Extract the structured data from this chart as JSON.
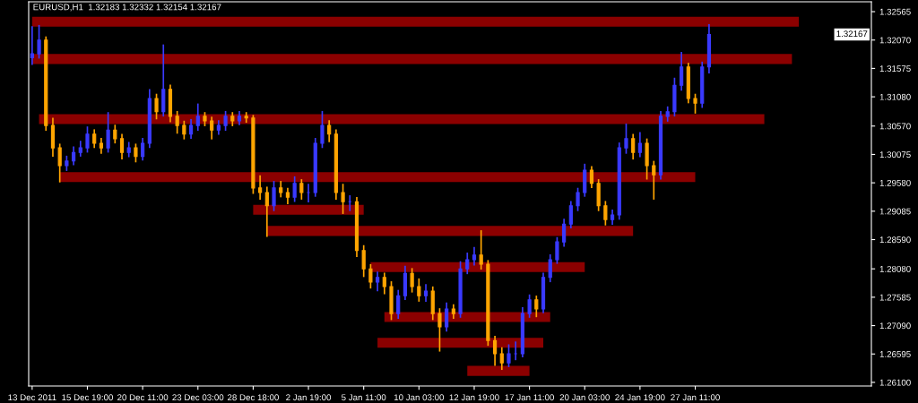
{
  "chart_data": {
    "type": "candlestick",
    "title": "EURUSD,H1  1.32183 1.32332 1.32154 1.32167",
    "categories": [
      "13 Dec 2011",
      null,
      null,
      null,
      null,
      null,
      null,
      null,
      "15 Dec 19:00",
      null,
      null,
      null,
      null,
      null,
      null,
      null,
      "20 Dec 11:00",
      null,
      null,
      null,
      null,
      null,
      null,
      null,
      "23 Dec 03:00",
      null,
      null,
      null,
      null,
      null,
      null,
      null,
      "28 Dec 18:00",
      null,
      null,
      null,
      null,
      null,
      null,
      null,
      "2 Jan 19:00",
      null,
      null,
      null,
      null,
      null,
      null,
      null,
      "5 Jan 11:00",
      null,
      null,
      null,
      null,
      null,
      null,
      null,
      "10 Jan 03:00",
      null,
      null,
      null,
      null,
      null,
      null,
      null,
      "12 Jan 19:00",
      null,
      null,
      null,
      null,
      null,
      null,
      null,
      "17 Jan 11:00",
      null,
      null,
      null,
      null,
      null,
      null,
      null,
      "20 Jan 03:00",
      null,
      null,
      null,
      null,
      null,
      null,
      null,
      "24 Jan 19:00",
      null,
      null,
      null,
      null,
      null,
      null,
      null,
      "27 Jan 11:00",
      null,
      null,
      null,
      null,
      null,
      null,
      null,
      null,
      null,
      null,
      null,
      null,
      null,
      null,
      null,
      null,
      null,
      null,
      null,
      null,
      null,
      null,
      null,
      null,
      null
    ],
    "ohlc": [
      [
        1.3176,
        1.323,
        1.3165,
        1.3183
      ],
      [
        1.3183,
        1.3232,
        1.3176,
        1.3207
      ],
      [
        1.3207,
        1.3212,
        1.305,
        1.3058
      ],
      [
        1.3058,
        1.307,
        1.3005,
        1.3019
      ],
      [
        1.3019,
        1.3025,
        1.296,
        1.2988
      ],
      [
        1.2988,
        1.3004,
        1.298,
        1.2996
      ],
      [
        1.2996,
        1.302,
        1.299,
        1.3011
      ],
      [
        1.3011,
        1.303,
        1.3005,
        1.3019
      ],
      [
        1.3019,
        1.3055,
        1.3012,
        1.3043
      ],
      [
        1.3043,
        1.305,
        1.302,
        1.3027
      ],
      [
        1.3027,
        1.3035,
        1.301,
        1.3019
      ],
      [
        1.3019,
        1.308,
        1.3012,
        1.305
      ],
      [
        1.305,
        1.3058,
        1.3028,
        1.3035
      ],
      [
        1.3035,
        1.3042,
        1.3,
        1.3011
      ],
      [
        1.3011,
        1.3028,
        1.3004,
        1.3019
      ],
      [
        1.3019,
        1.3025,
        1.2995,
        1.3004
      ],
      [
        1.3004,
        1.3035,
        1.2998,
        1.3027
      ],
      [
        1.3027,
        1.312,
        1.302,
        1.3105
      ],
      [
        1.3105,
        1.3112,
        1.307,
        1.3082
      ],
      [
        1.3082,
        1.3198,
        1.3075,
        1.3121
      ],
      [
        1.3121,
        1.3128,
        1.3065,
        1.3074
      ],
      [
        1.3074,
        1.3082,
        1.3045,
        1.3058
      ],
      [
        1.3058,
        1.3065,
        1.3035,
        1.3043
      ],
      [
        1.3043,
        1.3068,
        1.3036,
        1.3058
      ],
      [
        1.3058,
        1.3095,
        1.305,
        1.3074
      ],
      [
        1.3074,
        1.308,
        1.3058,
        1.3066
      ],
      [
        1.3066,
        1.3072,
        1.3035,
        1.305
      ],
      [
        1.305,
        1.3066,
        1.3043,
        1.3058
      ],
      [
        1.3058,
        1.3082,
        1.305,
        1.3074
      ],
      [
        1.3074,
        1.308,
        1.3058,
        1.3066
      ],
      [
        1.3066,
        1.3082,
        1.306,
        1.3074
      ],
      [
        1.3074,
        1.308,
        1.3064,
        1.3071
      ],
      [
        1.3071,
        1.3075,
        1.294,
        1.2949
      ],
      [
        1.2949,
        1.297,
        1.293,
        1.2941
      ],
      [
        1.2941,
        1.295,
        1.2865,
        1.2918
      ],
      [
        1.2918,
        1.296,
        1.291,
        1.2949
      ],
      [
        1.2949,
        1.296,
        1.2934,
        1.2941
      ],
      [
        1.2941,
        1.2948,
        1.2922,
        1.2933
      ],
      [
        1.2933,
        1.2968,
        1.2926,
        1.2957
      ],
      [
        1.2957,
        1.2963,
        1.293,
        1.2941
      ],
      [
        1.2941,
        1.2955,
        1.2925,
        1.2941
      ],
      [
        1.2941,
        1.3035,
        1.2935,
        1.3027
      ],
      [
        1.3027,
        1.3082,
        1.302,
        1.3058
      ],
      [
        1.3058,
        1.3066,
        1.303,
        1.3043
      ],
      [
        1.3043,
        1.305,
        1.293,
        1.2941
      ],
      [
        1.2941,
        1.2955,
        1.2905,
        1.2925
      ],
      [
        1.2925,
        1.2935,
        1.291,
        1.2925
      ],
      [
        1.2925,
        1.2932,
        1.283,
        1.284
      ],
      [
        1.284,
        1.2848,
        1.2795,
        1.2808
      ],
      [
        1.2808,
        1.2815,
        1.2775,
        1.2785
      ],
      [
        1.2785,
        1.2802,
        1.277,
        1.2793
      ],
      [
        1.2793,
        1.28,
        1.2765,
        1.2777
      ],
      [
        1.2777,
        1.2785,
        1.272,
        1.273
      ],
      [
        1.273,
        1.277,
        1.2722,
        1.2761
      ],
      [
        1.2761,
        1.2812,
        1.2755,
        1.28
      ],
      [
        1.28,
        1.2808,
        1.2768,
        1.2777
      ],
      [
        1.2777,
        1.279,
        1.2752,
        1.2761
      ],
      [
        1.2761,
        1.278,
        1.2752,
        1.2769
      ],
      [
        1.2769,
        1.2776,
        1.272,
        1.273
      ],
      [
        1.273,
        1.2738,
        1.2665,
        1.2707
      ],
      [
        1.2707,
        1.2748,
        1.27,
        1.2738
      ],
      [
        1.2738,
        1.2745,
        1.2722,
        1.273
      ],
      [
        1.273,
        1.282,
        1.2724,
        1.2808
      ],
      [
        1.2808,
        1.2835,
        1.28,
        1.2824
      ],
      [
        1.2824,
        1.2845,
        1.2815,
        1.2832
      ],
      [
        1.2832,
        1.2874,
        1.2808,
        1.2816
      ],
      [
        1.2816,
        1.2822,
        1.2675,
        1.2683
      ],
      [
        1.2683,
        1.269,
        1.264,
        1.266
      ],
      [
        1.266,
        1.267,
        1.2633,
        1.2644
      ],
      [
        1.2644,
        1.2675,
        1.2638,
        1.266
      ],
      [
        1.266,
        1.268,
        1.265,
        1.266
      ],
      [
        1.266,
        1.274,
        1.2655,
        1.273
      ],
      [
        1.273,
        1.2762,
        1.2724,
        1.2754
      ],
      [
        1.2754,
        1.276,
        1.2725,
        1.2738
      ],
      [
        1.2738,
        1.28,
        1.2732,
        1.2793
      ],
      [
        1.2793,
        1.2832,
        1.2786,
        1.2824
      ],
      [
        1.2824,
        1.2862,
        1.2818,
        1.2855
      ],
      [
        1.2855,
        1.2894,
        1.2848,
        1.2886
      ],
      [
        1.2886,
        1.2925,
        1.288,
        1.2918
      ],
      [
        1.2918,
        1.2948,
        1.291,
        1.2941
      ],
      [
        1.2941,
        1.299,
        1.2935,
        1.298
      ],
      [
        1.298,
        1.2986,
        1.295,
        1.2957
      ],
      [
        1.2957,
        1.2963,
        1.291,
        1.2918
      ],
      [
        1.2918,
        1.2925,
        1.2885,
        1.2894
      ],
      [
        1.2894,
        1.291,
        1.2886,
        1.2902
      ],
      [
        1.2902,
        1.3027,
        1.2895,
        1.3019
      ],
      [
        1.3019,
        1.306,
        1.301,
        1.3035
      ],
      [
        1.3035,
        1.3042,
        1.3,
        1.3011
      ],
      [
        1.3011,
        1.3045,
        1.3004,
        1.3027
      ],
      [
        1.3027,
        1.3034,
        1.2965,
        1.2988
      ],
      [
        1.2988,
        1.2995,
        1.293,
        1.2972
      ],
      [
        1.2972,
        1.3082,
        1.2965,
        1.3074
      ],
      [
        1.3074,
        1.309,
        1.3066,
        1.3082
      ],
      [
        1.3082,
        1.314,
        1.3075,
        1.3128
      ],
      [
        1.3128,
        1.3185,
        1.312,
        1.316
      ],
      [
        1.316,
        1.3166,
        1.3098,
        1.3105
      ],
      [
        1.3105,
        1.3112,
        1.308,
        1.3097
      ],
      [
        1.3097,
        1.3168,
        1.309,
        1.316
      ],
      [
        1.316,
        1.32332,
        1.315,
        1.32167
      ],
      null,
      null,
      null,
      null,
      null,
      null,
      null,
      null,
      null,
      null,
      null,
      null,
      null,
      null,
      null,
      null,
      null,
      null,
      null,
      null,
      null,
      null,
      null
    ],
    "colors": [
      "#3a3aff",
      "#3a3aff",
      "#ffa500",
      "#ffa500",
      "#ffa500",
      "#3a3aff",
      "#3a3aff",
      "#3a3aff",
      "#3a3aff",
      "#ffa500",
      "#ffa500",
      "#3a3aff",
      "#ffa500",
      "#ffa500",
      "#3a3aff",
      "#ffa500",
      "#3a3aff",
      "#3a3aff",
      "#ffa500",
      "#3a3aff",
      "#ffa500",
      "#ffa500",
      "#ffa500",
      "#3a3aff",
      "#3a3aff",
      "#ffa500",
      "#ffa500",
      "#3a3aff",
      "#3a3aff",
      "#ffa500",
      "#3a3aff",
      "#ffa500",
      "#ffa500",
      "#ffa500",
      "#ffa500",
      "#3a3aff",
      "#ffa500",
      "#ffa500",
      "#3a3aff",
      "#ffa500",
      "#3a3aff",
      "#3a3aff",
      "#3a3aff",
      "#ffa500",
      "#ffa500",
      "#ffa500",
      "#3a3aff",
      "#ffa500",
      "#ffa500",
      "#ffa500",
      "#3a3aff",
      "#ffa500",
      "#ffa500",
      "#3a3aff",
      "#3a3aff",
      "#ffa500",
      "#ffa500",
      "#3a3aff",
      "#ffa500",
      "#ffa500",
      "#3a3aff",
      "#ffa500",
      "#3a3aff",
      "#3a3aff",
      "#3a3aff",
      "#ffa500",
      "#ffa500",
      "#ffa500",
      "#ffa500",
      "#3a3aff",
      "#3a3aff",
      "#3a3aff",
      "#3a3aff",
      "#ffa500",
      "#3a3aff",
      "#3a3aff",
      "#3a3aff",
      "#3a3aff",
      "#3a3aff",
      "#3a3aff",
      "#3a3aff",
      "#ffa500",
      "#ffa500",
      "#ffa500",
      "#3a3aff",
      "#3a3aff",
      "#3a3aff",
      "#ffa500",
      "#3a3aff",
      "#ffa500",
      "#ffa500",
      "#3a3aff",
      "#3a3aff",
      "#3a3aff",
      "#3a3aff",
      "#ffa500",
      "#ffa500",
      "#3a3aff",
      "#3a3aff",
      null,
      null,
      null,
      null,
      null,
      null,
      null,
      null,
      null,
      null,
      null,
      null,
      null,
      null,
      null,
      null,
      null,
      null,
      null,
      null,
      null,
      null,
      null
    ],
    "series": [
      {
        "type": "line",
        "color": "#8b0000",
        "values": [
          1.3239,
          1.3239,
          1.3239,
          1.3239,
          1.3239,
          1.3239,
          1.3239,
          1.3239,
          1.3239,
          1.3239,
          1.3239,
          1.3239,
          1.3239,
          1.3239,
          1.3239,
          1.3239,
          1.3239,
          1.3239,
          1.3239,
          1.3239,
          1.3239,
          1.3239,
          1.3239,
          1.3239,
          1.3239,
          1.3239,
          1.3239,
          1.3239,
          1.3239,
          1.3239,
          1.3239,
          1.3239,
          1.3239,
          1.3239,
          1.3239,
          1.3239,
          1.3239,
          1.3239,
          1.3239,
          1.3239,
          1.3239,
          1.3239,
          1.3239,
          1.3239,
          1.3239,
          1.3239,
          1.3239,
          1.3239,
          1.3239,
          1.3239,
          1.3239,
          1.3239,
          1.3239,
          1.3239,
          1.3239,
          1.3239,
          1.3239,
          1.3239,
          1.3239,
          1.3239,
          1.3239,
          1.3239,
          1.3239,
          1.3239,
          1.3239,
          1.3239,
          1.3239,
          1.3239,
          1.3239,
          1.3239,
          1.3239,
          1.3239,
          1.3239,
          1.3239,
          1.3239,
          1.3239,
          1.3239,
          1.3239,
          1.3239,
          1.3239,
          1.3239,
          1.3239,
          1.3239,
          1.3239,
          1.3239,
          1.3239,
          1.3239,
          1.3239,
          1.3239,
          1.3239,
          1.3239,
          1.3239,
          1.3239,
          1.3239,
          1.3239,
          1.3239,
          1.3239,
          1.3239,
          1.3239,
          1.3239,
          1.3239,
          1.3239,
          1.3239,
          1.3239,
          1.3239,
          1.3239,
          1.3239,
          1.3239,
          1.3239,
          1.3239,
          1.3239,
          1.3239,
          null,
          null,
          null,
          null,
          null,
          null,
          null,
          null,
          null,
          null
        ]
      },
      {
        "type": "line",
        "color": "#8b0000",
        "values": [
          1.3174,
          1.3174,
          1.3174,
          1.3174,
          1.3174,
          1.3174,
          1.3174,
          1.3174,
          1.3174,
          1.3174,
          1.3174,
          1.3174,
          1.3174,
          1.3174,
          1.3174,
          1.3174,
          1.3174,
          1.3174,
          1.3174,
          1.3174,
          1.3174,
          1.3174,
          1.3174,
          1.3174,
          1.3174,
          1.3174,
          1.3174,
          1.3174,
          1.3174,
          1.3174,
          1.3174,
          1.3174,
          1.3174,
          1.3174,
          1.3174,
          1.3174,
          1.3174,
          1.3174,
          1.3174,
          1.3174,
          1.3174,
          1.3174,
          1.3174,
          1.3174,
          1.3174,
          1.3174,
          1.3174,
          1.3174,
          1.3174,
          1.3174,
          1.3174,
          1.3174,
          1.3174,
          1.3174,
          1.3174,
          1.3174,
          1.3174,
          1.3174,
          1.3174,
          1.3174,
          1.3174,
          1.3174,
          1.3174,
          1.3174,
          1.3174,
          1.3174,
          1.3174,
          1.3174,
          1.3174,
          1.3174,
          1.3174,
          1.3174,
          1.3174,
          1.3174,
          1.3174,
          1.3174,
          1.3174,
          1.3174,
          1.3174,
          1.3174,
          1.3174,
          1.3174,
          1.3174,
          1.3174,
          1.3174,
          1.3174,
          1.3174,
          1.3174,
          1.3174,
          1.3174,
          1.3174,
          1.3174,
          1.3174,
          1.3174,
          1.3174,
          1.3174,
          1.3174,
          1.3174,
          1.3174,
          1.3174,
          1.3174,
          1.3174,
          1.3174,
          1.3174,
          1.3174,
          1.3174,
          1.3174,
          1.3174,
          1.3174,
          1.3174,
          1.3174,
          null,
          null,
          null,
          null,
          null,
          null,
          null,
          null,
          null,
          null,
          null
        ]
      },
      {
        "type": "line",
        "color": "#8b0000",
        "values": [
          null,
          1.3069,
          1.3069,
          1.3069,
          1.3069,
          1.3069,
          1.3069,
          1.3069,
          1.3069,
          1.3069,
          1.3069,
          1.3069,
          1.3069,
          1.3069,
          1.3069,
          1.3069,
          1.3069,
          1.3069,
          1.3069,
          1.3069,
          1.3069,
          1.3069,
          1.3069,
          1.3069,
          1.3069,
          1.3069,
          1.3069,
          1.3069,
          1.3069,
          1.3069,
          1.3069,
          1.3069,
          1.3069,
          1.3069,
          1.3069,
          1.3069,
          1.3069,
          1.3069,
          1.3069,
          1.3069,
          1.3069,
          1.3069,
          1.3069,
          1.3069,
          1.3069,
          1.3069,
          1.3069,
          1.3069,
          1.3069,
          1.3069,
          1.3069,
          1.3069,
          1.3069,
          1.3069,
          1.3069,
          1.3069,
          1.3069,
          1.3069,
          1.3069,
          1.3069,
          1.3069,
          1.3069,
          1.3069,
          1.3069,
          1.3069,
          1.3069,
          1.3069,
          1.3069,
          1.3069,
          1.3069,
          1.3069,
          1.3069,
          1.3069,
          1.3069,
          1.3069,
          1.3069,
          1.3069,
          1.3069,
          1.3069,
          1.3069,
          1.3069,
          1.3069,
          1.3069,
          1.3069,
          1.3069,
          1.3069,
          1.3069,
          1.3069,
          1.3069,
          1.3069,
          1.3069,
          1.3069,
          1.3069,
          1.3069,
          1.3069,
          1.3069,
          1.3069,
          1.3069,
          1.3069,
          1.3069,
          1.3069,
          1.3069,
          1.3069,
          1.3069,
          1.3069,
          1.3069,
          1.3069,
          null,
          null,
          null,
          null,
          null,
          null,
          null,
          null,
          null,
          null,
          null,
          null,
          null,
          null,
          null
        ]
      },
      {
        "type": "line",
        "color": "#8b0000",
        "values": [
          null,
          null,
          null,
          null,
          1.2968,
          1.2968,
          1.2968,
          1.2968,
          1.2968,
          1.2968,
          1.2968,
          1.2968,
          1.2968,
          1.2968,
          1.2968,
          1.2968,
          1.2968,
          1.2968,
          1.2968,
          1.2968,
          1.2968,
          1.2968,
          1.2968,
          1.2968,
          1.2968,
          1.2968,
          1.2968,
          1.2968,
          1.2968,
          1.2968,
          1.2968,
          1.2968,
          1.2968,
          1.2968,
          1.2968,
          1.2968,
          1.2968,
          1.2968,
          1.2968,
          1.2968,
          1.2968,
          1.2968,
          1.2968,
          1.2968,
          1.2968,
          1.2968,
          1.2968,
          1.2968,
          1.2968,
          1.2968,
          1.2968,
          1.2968,
          1.2968,
          1.2968,
          1.2968,
          1.2968,
          1.2968,
          1.2968,
          1.2968,
          1.2968,
          1.2968,
          1.2968,
          1.2968,
          1.2968,
          1.2968,
          1.2968,
          1.2968,
          1.2968,
          1.2968,
          1.2968,
          1.2968,
          1.2968,
          1.2968,
          1.2968,
          1.2968,
          1.2968,
          1.2968,
          1.2968,
          1.2968,
          1.2968,
          1.2968,
          1.2968,
          1.2968,
          1.2968,
          1.2968,
          1.2968,
          1.2968,
          1.2968,
          1.2968,
          1.2968,
          1.2968,
          1.2968,
          1.2968,
          1.2968,
          1.2968,
          1.2968,
          1.2968,
          null,
          null,
          null,
          null,
          null,
          null,
          null,
          null,
          null,
          null,
          null,
          null,
          null,
          null,
          null,
          null,
          null,
          null,
          null,
          null,
          null,
          null,
          null,
          null,
          null
        ]
      },
      {
        "type": "line",
        "color": "#8b0000",
        "values": [
          null,
          null,
          null,
          null,
          null,
          null,
          null,
          null,
          null,
          null,
          null,
          null,
          null,
          null,
          null,
          null,
          null,
          null,
          null,
          null,
          null,
          null,
          null,
          null,
          null,
          null,
          null,
          null,
          null,
          null,
          null,
          null,
          1.2911,
          1.2911,
          1.2911,
          1.2911,
          1.2911,
          1.2911,
          1.2911,
          1.2911,
          1.2911,
          1.2911,
          1.2911,
          1.2911,
          1.2911,
          1.2911,
          1.2911,
          1.2911,
          1.2911,
          null,
          null,
          null,
          null,
          null,
          null,
          null,
          null,
          null,
          null,
          null,
          null,
          null,
          null,
          null,
          null,
          null,
          null,
          null,
          null,
          null,
          null,
          null,
          null,
          null,
          null,
          null,
          null,
          null,
          null,
          null,
          null,
          null,
          null,
          null,
          null,
          null,
          null,
          null,
          null,
          null,
          null,
          null,
          null,
          null,
          null,
          null,
          null,
          null,
          null,
          null,
          null,
          null,
          null,
          null,
          null,
          null,
          null,
          null,
          null,
          null,
          null,
          null,
          null,
          null,
          null,
          null,
          null,
          null,
          null,
          null,
          null,
          null
        ]
      },
      {
        "type": "line",
        "color": "#8b0000",
        "values": [
          null,
          null,
          null,
          null,
          null,
          null,
          null,
          null,
          null,
          null,
          null,
          null,
          null,
          null,
          null,
          null,
          null,
          null,
          null,
          null,
          null,
          null,
          null,
          null,
          null,
          null,
          null,
          null,
          null,
          null,
          null,
          null,
          null,
          null,
          1.2874,
          1.2874,
          1.2874,
          1.2874,
          1.2874,
          1.2874,
          1.2874,
          1.2874,
          1.2874,
          1.2874,
          1.2874,
          1.2874,
          1.2874,
          1.2874,
          1.2874,
          1.2874,
          1.2874,
          1.2874,
          1.2874,
          1.2874,
          1.2874,
          1.2874,
          1.2874,
          1.2874,
          1.2874,
          1.2874,
          1.2874,
          1.2874,
          1.2874,
          1.2874,
          1.2874,
          1.2874,
          1.2874,
          1.2874,
          1.2874,
          1.2874,
          1.2874,
          1.2874,
          1.2874,
          1.2874,
          1.2874,
          1.2874,
          1.2874,
          1.2874,
          1.2874,
          1.2874,
          1.2874,
          1.2874,
          1.2874,
          1.2874,
          1.2874,
          1.2874,
          1.2874,
          1.2874,
          null,
          null,
          null,
          null,
          null,
          null,
          null,
          null,
          null,
          null,
          null,
          null,
          null,
          null,
          null,
          null,
          null,
          null,
          null,
          null,
          null,
          null,
          null,
          null,
          null,
          null,
          null,
          null,
          null,
          null,
          null,
          null,
          null,
          null
        ]
      },
      {
        "type": "line",
        "color": "#8b0000",
        "values": [
          null,
          null,
          null,
          null,
          null,
          null,
          null,
          null,
          null,
          null,
          null,
          null,
          null,
          null,
          null,
          null,
          null,
          null,
          null,
          null,
          null,
          null,
          null,
          null,
          null,
          null,
          null,
          null,
          null,
          null,
          null,
          null,
          null,
          null,
          null,
          null,
          null,
          null,
          null,
          null,
          null,
          null,
          null,
          null,
          null,
          null,
          null,
          null,
          null,
          1.2811,
          1.2811,
          1.2811,
          1.2811,
          1.2811,
          1.2811,
          1.2811,
          1.2811,
          1.2811,
          1.2811,
          1.2811,
          1.2811,
          1.2811,
          1.2811,
          1.2811,
          1.2811,
          1.2811,
          1.2811,
          1.2811,
          1.2811,
          1.2811,
          1.2811,
          1.2811,
          1.2811,
          1.2811,
          1.2811,
          1.2811,
          1.2811,
          1.2811,
          1.2811,
          1.2811,
          1.2811,
          null,
          null,
          null,
          null,
          null,
          null,
          null,
          null,
          null,
          null,
          null,
          null,
          null,
          null,
          null,
          null,
          null,
          null,
          null,
          null,
          null,
          null,
          null,
          null,
          null,
          null,
          null,
          null,
          null,
          null,
          null,
          null,
          null,
          null,
          null,
          null,
          null,
          null,
          null,
          null,
          null
        ]
      },
      {
        "type": "line",
        "color": "#8b0000",
        "values": [
          null,
          null,
          null,
          null,
          null,
          null,
          null,
          null,
          null,
          null,
          null,
          null,
          null,
          null,
          null,
          null,
          null,
          null,
          null,
          null,
          null,
          null,
          null,
          null,
          null,
          null,
          null,
          null,
          null,
          null,
          null,
          null,
          null,
          null,
          null,
          null,
          null,
          null,
          null,
          null,
          null,
          null,
          null,
          null,
          null,
          null,
          null,
          null,
          null,
          null,
          null,
          1.2724,
          1.2724,
          1.2724,
          1.2724,
          1.2724,
          1.2724,
          1.2724,
          1.2724,
          1.2724,
          1.2724,
          1.2724,
          1.2724,
          1.2724,
          1.2724,
          1.2724,
          1.2724,
          1.2724,
          1.2724,
          1.2724,
          1.2724,
          1.2724,
          1.2724,
          1.2724,
          1.2724,
          1.2724,
          null,
          null,
          null,
          null,
          null,
          null,
          null,
          null,
          null,
          null,
          null,
          null,
          null,
          null,
          null,
          null,
          null,
          null,
          null,
          null,
          null,
          null,
          null,
          null,
          null,
          null,
          null,
          null,
          null,
          null,
          null,
          null,
          null,
          null,
          null,
          null,
          null,
          null,
          null,
          null,
          null,
          null,
          null,
          null,
          null,
          null
        ]
      },
      {
        "type": "line",
        "color": "#8b0000",
        "values": [
          null,
          null,
          null,
          null,
          null,
          null,
          null,
          null,
          null,
          null,
          null,
          null,
          null,
          null,
          null,
          null,
          null,
          null,
          null,
          null,
          null,
          null,
          null,
          null,
          null,
          null,
          null,
          null,
          null,
          null,
          null,
          null,
          null,
          null,
          null,
          null,
          null,
          null,
          null,
          null,
          null,
          null,
          null,
          null,
          null,
          null,
          null,
          null,
          null,
          null,
          1.2679,
          1.2679,
          1.2679,
          1.2679,
          1.2679,
          1.2679,
          1.2679,
          1.2679,
          1.2679,
          1.2679,
          1.2679,
          1.2679,
          1.2679,
          1.2679,
          1.2679,
          1.2679,
          1.2679,
          1.2679,
          1.2679,
          1.2679,
          1.2679,
          1.2679,
          1.2679,
          1.2679,
          1.2679,
          null,
          null,
          null,
          null,
          null,
          null,
          null,
          null,
          null,
          null,
          null,
          null,
          null,
          null,
          null,
          null,
          null,
          null,
          null,
          null,
          null,
          null,
          null,
          null,
          null,
          null,
          null,
          null,
          null,
          null,
          null,
          null,
          null,
          null,
          null,
          null,
          null,
          null,
          null,
          null,
          null,
          null,
          null,
          null,
          null,
          null,
          null
        ]
      },
      {
        "type": "line",
        "color": "#8b0000",
        "values": [
          null,
          null,
          null,
          null,
          null,
          null,
          null,
          null,
          null,
          null,
          null,
          null,
          null,
          null,
          null,
          null,
          null,
          null,
          null,
          null,
          null,
          null,
          null,
          null,
          null,
          null,
          null,
          null,
          null,
          null,
          null,
          null,
          null,
          null,
          null,
          null,
          null,
          null,
          null,
          null,
          null,
          null,
          null,
          null,
          null,
          null,
          null,
          null,
          null,
          null,
          null,
          null,
          null,
          null,
          null,
          null,
          null,
          null,
          null,
          null,
          null,
          null,
          null,
          1.263,
          1.263,
          1.263,
          1.263,
          1.263,
          1.263,
          1.263,
          1.263,
          1.263,
          1.263,
          null,
          null,
          null,
          null,
          null,
          null,
          null,
          null,
          null,
          null,
          null,
          null,
          null,
          null,
          null,
          null,
          null,
          null,
          null,
          null,
          null,
          null,
          null,
          null,
          null,
          null,
          null,
          null,
          null,
          null,
          null,
          null,
          null,
          null,
          null,
          null,
          null,
          null,
          null,
          null,
          null,
          null,
          null,
          null,
          null,
          null,
          null,
          null,
          null
        ]
      }
    ],
    "annotations": [
      "1.32167"
    ],
    "ylim": [
      1.26037,
      1.32737
    ],
    "yticks": [
      {
        "value": 1.32565,
        "label": "1.32565"
      },
      {
        "value": 1.3207,
        "label": "1.32070"
      },
      {
        "value": 1.31575,
        "label": "1.31575"
      },
      {
        "value": 1.3108,
        "label": "1.31080"
      },
      {
        "value": 1.3057,
        "label": "1.30570"
      },
      {
        "value": 1.30075,
        "label": "1.30075"
      },
      {
        "value": 1.2958,
        "label": "1.29580"
      },
      {
        "value": 1.29085,
        "label": "1.29085"
      },
      {
        "value": 1.2859,
        "label": "1.28590"
      },
      {
        "value": 1.2808,
        "label": "1.28080"
      },
      {
        "value": 1.27585,
        "label": "1.27585"
      },
      {
        "value": 1.2709,
        "label": "1.27090"
      },
      {
        "value": 1.26595,
        "label": "1.26595"
      },
      {
        "value": 1.261,
        "label": "1.26100"
      }
    ],
    "grid": false,
    "legend": false
  }
}
